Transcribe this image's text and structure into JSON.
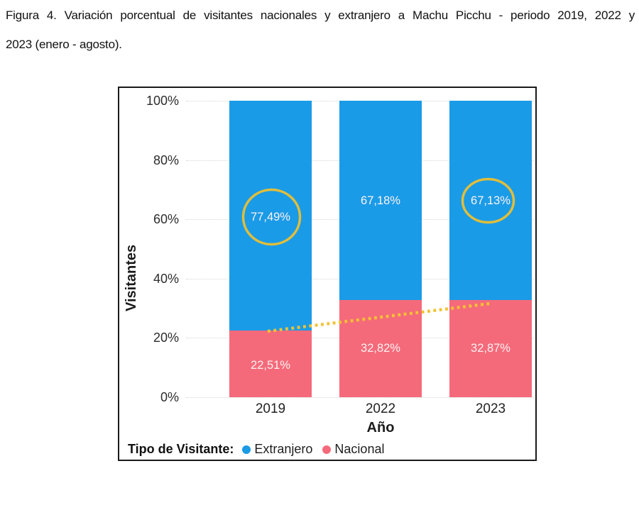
{
  "caption": {
    "line1": "Figura 4. Variación porcentual de visitantes nacionales y extranjero a Machu Picchu - periodo 2019, 2022 y",
    "line2": "2023 (enero - agosto)."
  },
  "chart_data": {
    "type": "bar",
    "subtype": "stacked-100-percent",
    "categories": [
      "2019",
      "2022",
      "2023"
    ],
    "series": [
      {
        "name": "Extranjero",
        "color": "#1A9BE7",
        "values": [
          77.49,
          67.18,
          67.13
        ],
        "labels": [
          "77,49%",
          "67,18%",
          "67,13%"
        ]
      },
      {
        "name": "Nacional",
        "color": "#F56A7A",
        "values": [
          22.51,
          32.82,
          32.87
        ],
        "labels": [
          "22,51%",
          "32,82%",
          "32,87%"
        ]
      }
    ],
    "title": "",
    "xlabel": "Año",
    "ylabel": "Visitantes",
    "ylim": [
      0,
      100
    ],
    "y_ticks": [
      "100%",
      "80%",
      "60%",
      "40%",
      "20%",
      "0%"
    ],
    "grid": "horizontal-dotted",
    "legend": {
      "title": "Tipo de Visitante:",
      "position": "bottom",
      "items": [
        {
          "label": "Extranjero",
          "color": "#1A9BE7"
        },
        {
          "label": "Nacional",
          "color": "#F56A7A"
        }
      ]
    },
    "annotations": {
      "highlight_circles": {
        "color": "#E0BE3C",
        "targets": [
          {
            "category": "2019",
            "series": "Extranjero",
            "label": "77,49%"
          },
          {
            "category": "2023",
            "series": "Extranjero",
            "label": "67,13%"
          }
        ]
      },
      "trendline": {
        "style": "dotted",
        "color": "#F1C232",
        "description": "rising trend across tops of Nacional segments",
        "from": {
          "category": "2019",
          "value": 22.51
        },
        "to": {
          "category": "2023",
          "value": 32.87
        }
      }
    }
  }
}
